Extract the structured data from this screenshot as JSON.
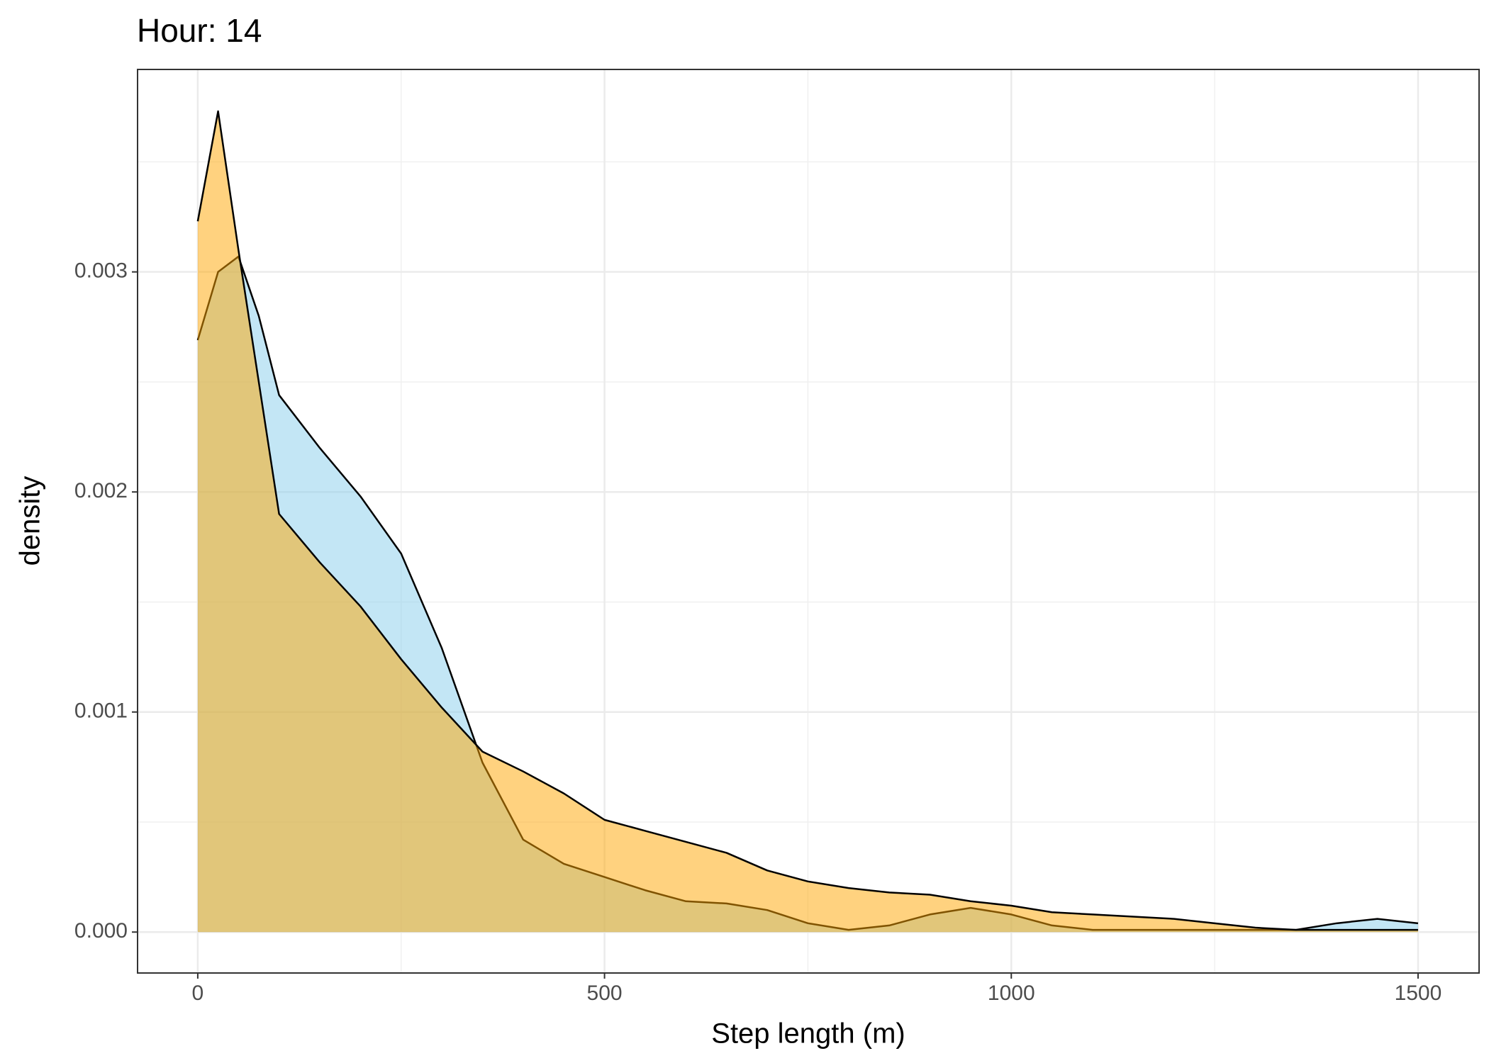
{
  "chart_data": {
    "type": "area",
    "title": "Hour: 14",
    "xlabel": "Step length (m)",
    "ylabel": "density",
    "x": [
      0,
      25,
      50,
      75,
      100,
      150,
      200,
      250,
      300,
      350,
      400,
      450,
      500,
      550,
      600,
      650,
      700,
      750,
      800,
      850,
      900,
      950,
      1000,
      1050,
      1100,
      1150,
      1200,
      1250,
      1300,
      1350,
      1400,
      1450,
      1500
    ],
    "series": [
      {
        "color": "#87ceeb",
        "values": [
          0.00269,
          0.003,
          0.00307,
          0.0028,
          0.00244,
          0.0022,
          0.00198,
          0.00172,
          0.00129,
          0.00077,
          0.00042,
          0.00031,
          0.00025,
          0.00019,
          0.00014,
          0.00013,
          0.0001,
          4e-05,
          1e-05,
          3e-05,
          8e-05,
          0.00011,
          8e-05,
          3e-05,
          1e-05,
          1e-05,
          1e-05,
          1e-05,
          1e-05,
          1e-05,
          4e-05,
          6e-05,
          4e-05
        ]
      },
      {
        "color": "#ffa500",
        "values": [
          0.00323,
          0.00373,
          0.0031,
          0.0025,
          0.0019,
          0.00168,
          0.00148,
          0.00124,
          0.00102,
          0.00082,
          0.00073,
          0.00063,
          0.00051,
          0.00046,
          0.00041,
          0.00036,
          0.00028,
          0.00023,
          0.0002,
          0.00018,
          0.00017,
          0.00014,
          0.00012,
          9e-05,
          8e-05,
          7e-05,
          6e-05,
          4e-05,
          2e-05,
          1e-05,
          1e-05,
          1e-05,
          1e-05
        ]
      }
    ],
    "fill_opacity": 0.5,
    "xlim": [
      -74,
      1575
    ],
    "ylim": [
      -0.000186,
      0.00392
    ],
    "xticks": [
      0,
      500,
      1000,
      1500
    ],
    "yticks": [
      {
        "value": 0,
        "label": "0.000"
      },
      {
        "value": 0.001,
        "label": "0.001"
      },
      {
        "value": 0.002,
        "label": "0.002"
      },
      {
        "value": 0.003,
        "label": "0.003"
      }
    ],
    "x_minor_grid": [
      250,
      750,
      1250
    ],
    "y_minor_grid": [
      0.0005,
      0.0015,
      0.0025,
      0.0035
    ],
    "grid": true
  }
}
